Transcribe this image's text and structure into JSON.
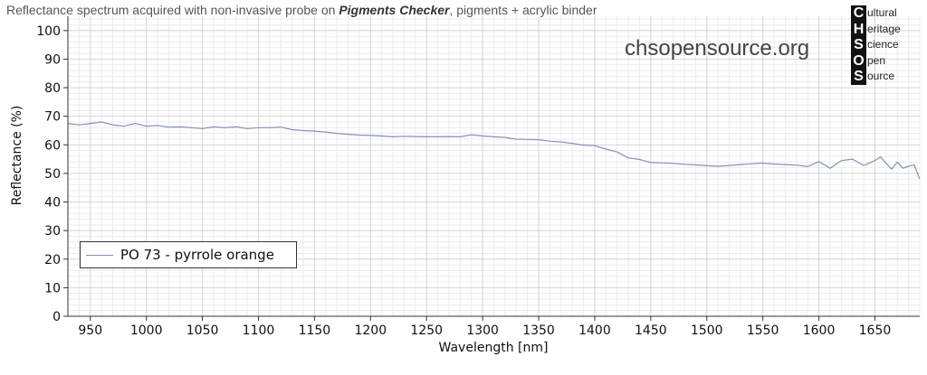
{
  "header": {
    "title_prefix": "Reflectance spectrum acquired with non-invasive probe on ",
    "title_bold": "Pigments Checker",
    "title_suffix": ", pigments + acrylic binder",
    "website": "chsopensource.org"
  },
  "logo": {
    "letters": [
      "C",
      "H",
      "S",
      "O",
      "S"
    ],
    "words": [
      "ultural",
      "eritage",
      "cience",
      "pen",
      "ource"
    ]
  },
  "chart_data": {
    "type": "line",
    "xlabel": "Wavelength [nm]",
    "ylabel": "Reflectance (%)",
    "xlim": [
      930,
      1690
    ],
    "ylim": [
      0,
      105
    ],
    "xticks": [
      950,
      1000,
      1050,
      1100,
      1150,
      1200,
      1250,
      1300,
      1350,
      1400,
      1450,
      1500,
      1550,
      1600,
      1650
    ],
    "yticks": [
      0,
      10,
      20,
      30,
      40,
      50,
      60,
      70,
      80,
      90,
      100
    ],
    "xtick_labels": [
      "950",
      "1000",
      "1050",
      "1100",
      "1150",
      "1200",
      "1250",
      "1300",
      "1350",
      "1400",
      "1450",
      "1500",
      "1550",
      "1600",
      "1650"
    ],
    "ytick_labels": [
      "0",
      "10",
      "20",
      "30",
      "40",
      "50",
      "60",
      "70",
      "80",
      "90",
      "100"
    ],
    "grid": true,
    "legend_position": "bottom-left",
    "series": [
      {
        "name": "PO 73 - pyrrole orange",
        "color": "#7f94b5",
        "x": [
          930,
          940,
          950,
          960,
          970,
          980,
          990,
          1000,
          1010,
          1020,
          1030,
          1040,
          1050,
          1060,
          1070,
          1080,
          1090,
          1100,
          1110,
          1120,
          1130,
          1140,
          1150,
          1160,
          1170,
          1180,
          1190,
          1200,
          1210,
          1220,
          1230,
          1240,
          1250,
          1260,
          1270,
          1280,
          1290,
          1300,
          1310,
          1320,
          1330,
          1340,
          1350,
          1360,
          1370,
          1380,
          1390,
          1400,
          1410,
          1420,
          1430,
          1440,
          1450,
          1460,
          1470,
          1480,
          1490,
          1500,
          1510,
          1520,
          1530,
          1540,
          1550,
          1560,
          1570,
          1580,
          1590,
          1600,
          1610,
          1620,
          1630,
          1640,
          1650,
          1655,
          1660,
          1665,
          1670,
          1675,
          1680,
          1685,
          1690
        ],
        "values": [
          67.5,
          67,
          67.5,
          68,
          67,
          66.5,
          67.5,
          66.5,
          66.8,
          66.2,
          66.3,
          66,
          65.7,
          66.3,
          66,
          66.3,
          65.7,
          66,
          66,
          66.2,
          65.3,
          65,
          64.8,
          64.5,
          64,
          63.7,
          63.4,
          63.3,
          63.1,
          62.8,
          63,
          62.9,
          62.8,
          62.8,
          62.9,
          62.8,
          63.5,
          63.1,
          62.8,
          62.6,
          62,
          61.9,
          61.8,
          61.3,
          61,
          60.5,
          59.9,
          59.7,
          58.5,
          57.5,
          55.4,
          54.9,
          53.8,
          53.7,
          53.5,
          53.2,
          53,
          52.7,
          52.5,
          52.8,
          53.1,
          53.4,
          53.6,
          53.3,
          53.1,
          52.9,
          52.4,
          54.1,
          51.8,
          54.5,
          55,
          52.8,
          54.5,
          55.8,
          53.5,
          51.5,
          54,
          51.8,
          52.5,
          53,
          48
        ]
      }
    ]
  }
}
